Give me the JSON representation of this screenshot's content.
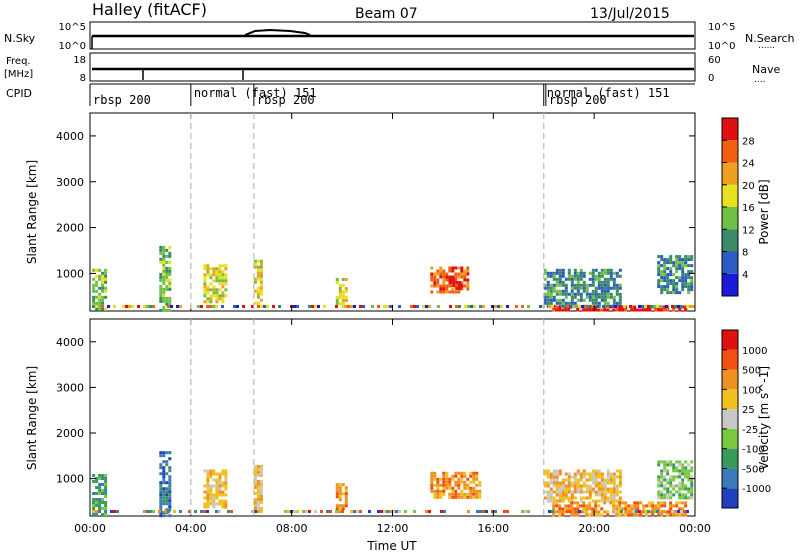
{
  "header": {
    "title": "Halley (fitACF)",
    "beam": "Beam 07",
    "date": "13/Jul/2015"
  },
  "status": {
    "nsky_label": "N.Sky",
    "nsearch_label": "N.Search",
    "freq_label": "Freq.",
    "freq_unit": "[MHz]",
    "nave_label": "Nave",
    "cpid_label": "CPID",
    "nsky_ticks": [
      "10^5",
      "10^0"
    ],
    "nsearch_ticks": [
      "10^5",
      "10^0"
    ],
    "freq_ticks": [
      "18",
      "8"
    ],
    "nave_ticks": [
      "60",
      "0"
    ],
    "freq_mhz": 11,
    "nave": 35,
    "modes": [
      {
        "label": "rbsp 200",
        "start": "00:00"
      },
      {
        "label": "normal (fast) 151",
        "start": "04:00"
      },
      {
        "label": "rbsp 200",
        "start": "06:30"
      },
      {
        "label": "normal (fast) 151",
        "start": "18:00"
      },
      {
        "label": "rbsp 200",
        "start": "18:05"
      }
    ]
  },
  "chart_data": [
    {
      "type": "heatmap",
      "quantity": "power",
      "ylabel": "Slant Range [km]",
      "colorbar_label": "Power [dB]",
      "ylim": [
        180,
        4500
      ],
      "yticks": [
        1000,
        2000,
        3000,
        4000
      ],
      "clim": [
        0,
        32
      ],
      "colorbar_ticks": [
        "4",
        "8",
        "12",
        "16",
        "20",
        "24",
        "28"
      ],
      "colors": [
        "#1a1ad8",
        "#2a5cc4",
        "#3a8a6a",
        "#70c048",
        "#e8e020",
        "#f0a020",
        "#f06010",
        "#e01010"
      ],
      "regions": [
        {
          "t0": "00:05",
          "t1": "00:40",
          "r0": 200,
          "r1": 1100,
          "level": 3
        },
        {
          "t0": "02:45",
          "t1": "03:10",
          "r0": 200,
          "r1": 1600,
          "level": 3
        },
        {
          "t0": "04:30",
          "t1": "05:20",
          "r0": 400,
          "r1": 1200,
          "level": 4
        },
        {
          "t0": "06:30",
          "t1": "06:50",
          "r0": 300,
          "r1": 1300,
          "level": 4
        },
        {
          "t0": "09:45",
          "t1": "10:10",
          "r0": 250,
          "r1": 900,
          "level": 4
        },
        {
          "t0": "13:30",
          "t1": "15:00",
          "r0": 600,
          "r1": 1150,
          "level": 6
        },
        {
          "t0": "14:15",
          "t1": "14:40",
          "r0": 700,
          "r1": 900,
          "level": 7
        },
        {
          "t0": "18:00",
          "t1": "21:00",
          "r0": 300,
          "r1": 1100,
          "level": 2
        },
        {
          "t0": "18:20",
          "t1": "23:40",
          "r0": 200,
          "r1": 300,
          "level": 7
        },
        {
          "t0": "22:30",
          "t1": "23:50",
          "r0": 600,
          "r1": 1400,
          "level": 2
        }
      ]
    },
    {
      "type": "heatmap",
      "quantity": "velocity",
      "ylabel": "Slant Range [km]",
      "xlabel": "Time UT",
      "colorbar_label": "Velocity [m s^-1]",
      "ylim": [
        180,
        4500
      ],
      "yticks": [
        1000,
        2000,
        3000,
        4000
      ],
      "xticks": [
        "00:00",
        "04:00",
        "08:00",
        "12:00",
        "16:00",
        "20:00",
        "00:00"
      ],
      "colorbar_ticks": [
        "1000",
        "500",
        "100",
        "25",
        "-25",
        "-100",
        "-500",
        "-1000"
      ],
      "colors": [
        "#2040c0",
        "#3a7ab8",
        "#3a9a5a",
        "#78c840",
        "#c8c8c8",
        "#f0c020",
        "#f09020",
        "#f05010",
        "#e01010"
      ],
      "regions": [
        {
          "t0": "00:05",
          "t1": "00:40",
          "r0": 200,
          "r1": 1100,
          "level": 2
        },
        {
          "t0": "02:45",
          "t1": "03:10",
          "r0": 200,
          "r1": 1600,
          "level": 1
        },
        {
          "t0": "04:30",
          "t1": "05:20",
          "r0": 400,
          "r1": 1200,
          "level": 5
        },
        {
          "t0": "06:30",
          "t1": "06:50",
          "r0": 300,
          "r1": 1300,
          "level": 5
        },
        {
          "t0": "09:45",
          "t1": "10:10",
          "r0": 250,
          "r1": 900,
          "level": 6
        },
        {
          "t0": "13:30",
          "t1": "15:30",
          "r0": 600,
          "r1": 1150,
          "level": 6
        },
        {
          "t0": "18:00",
          "t1": "21:00",
          "r0": 500,
          "r1": 1200,
          "level": 5
        },
        {
          "t0": "18:20",
          "t1": "23:40",
          "r0": 200,
          "r1": 500,
          "level": 6
        },
        {
          "t0": "22:30",
          "t1": "23:50",
          "r0": 600,
          "r1": 1400,
          "level": 3
        }
      ]
    }
  ]
}
